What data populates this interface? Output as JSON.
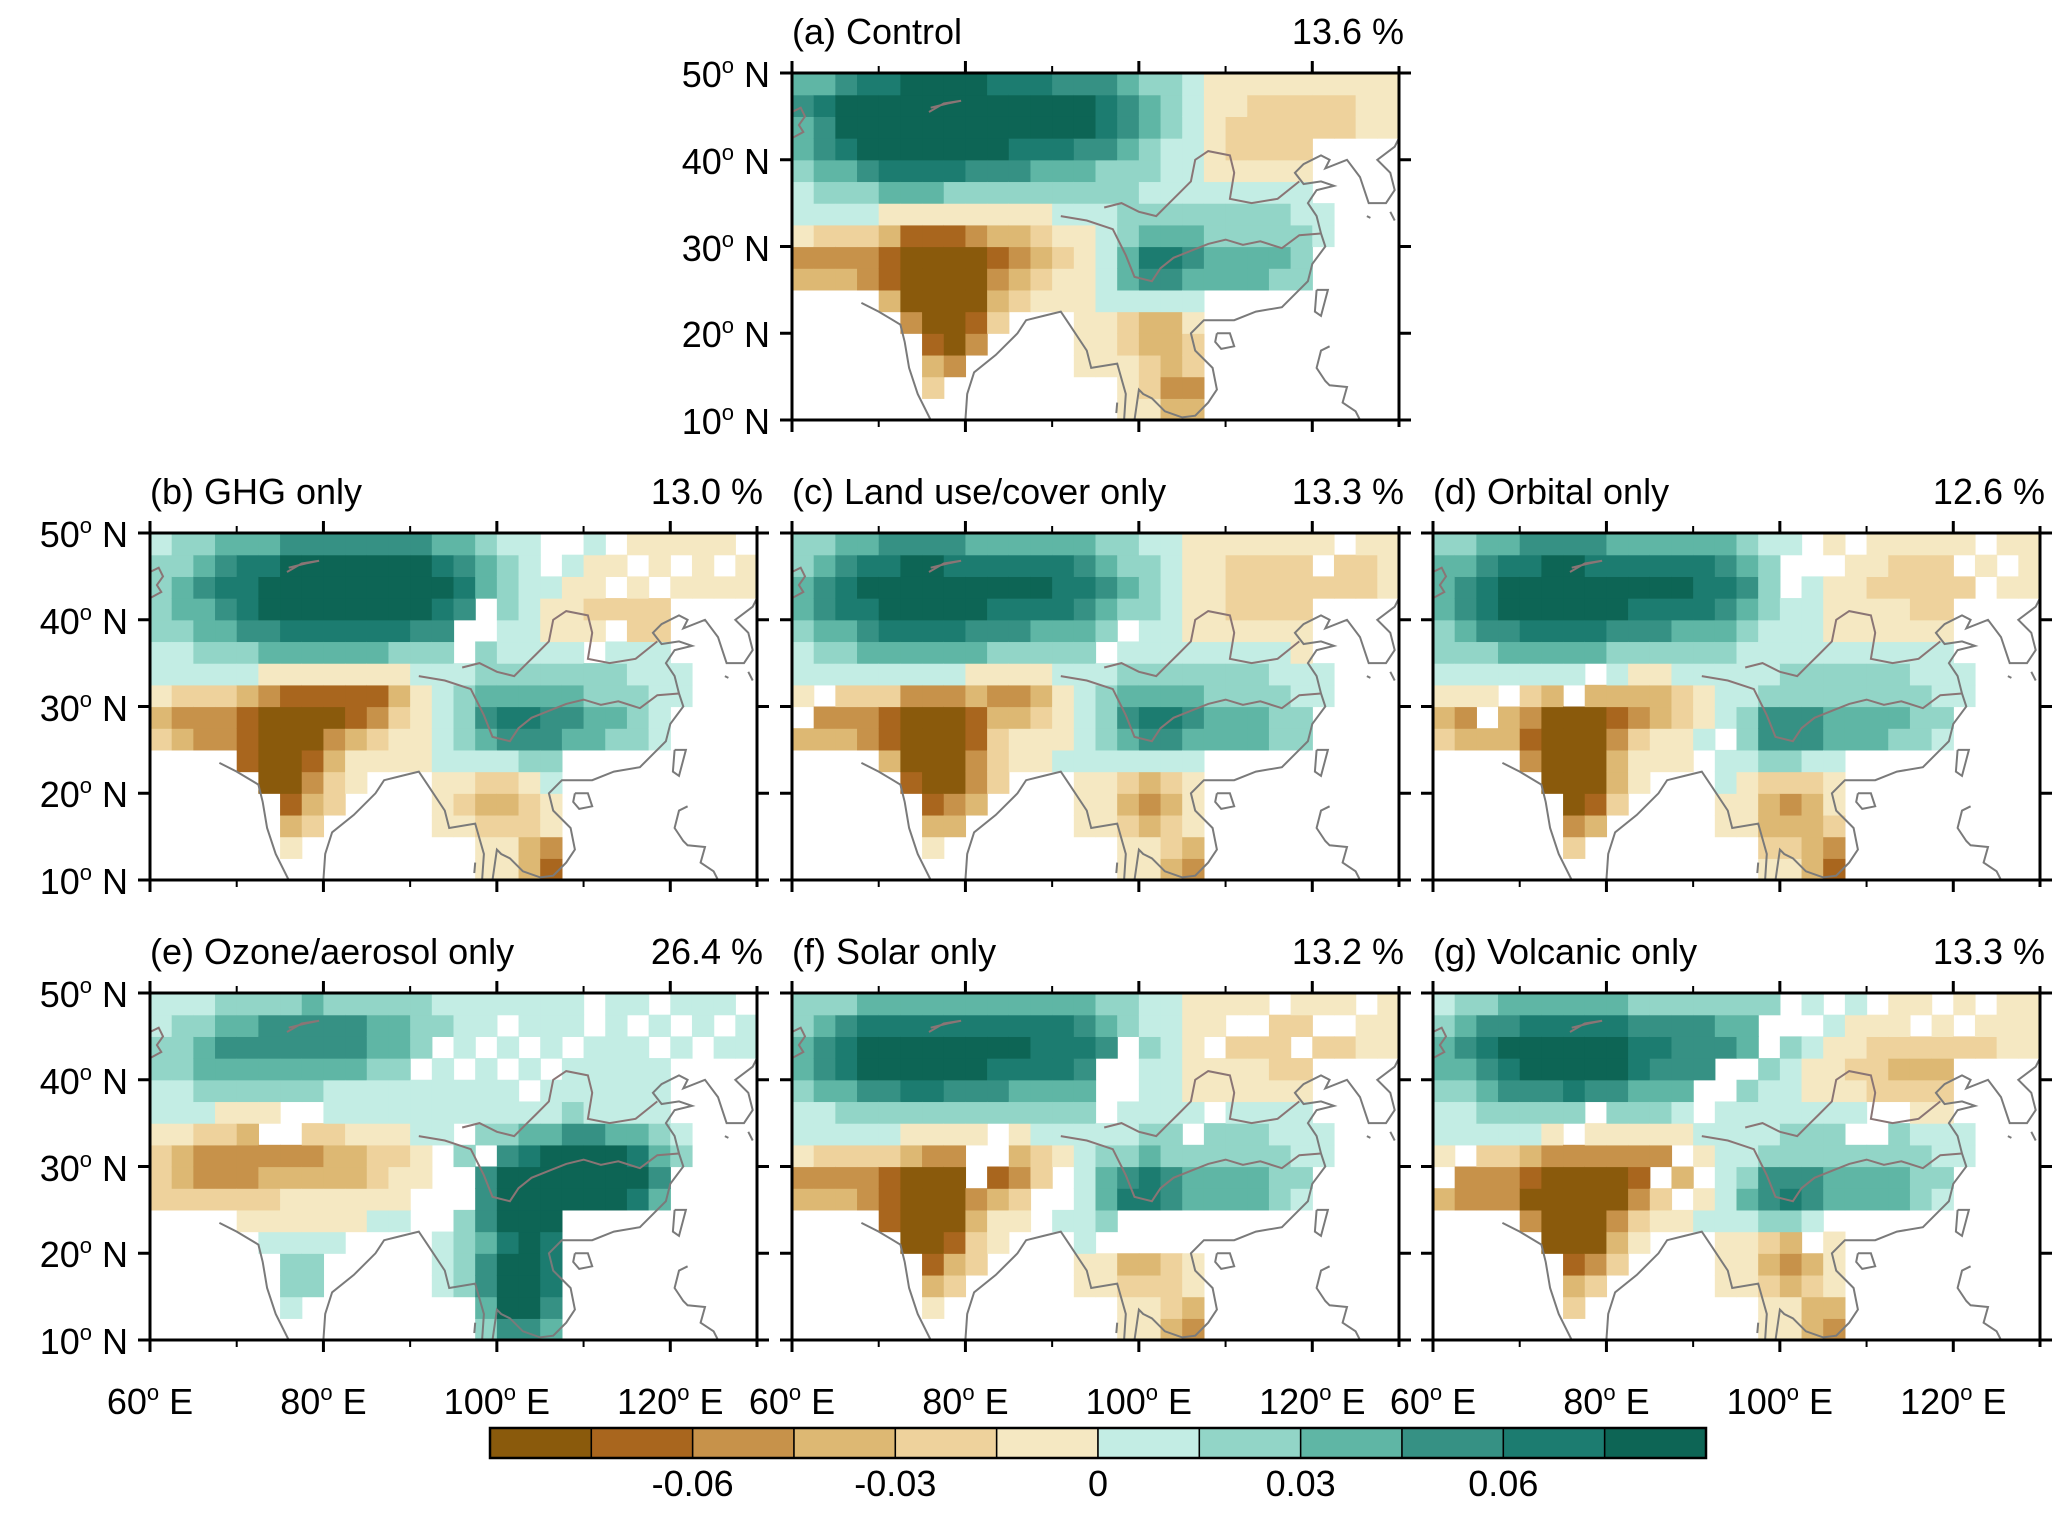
{
  "chart_data": {
    "type": "heatmap",
    "figure_kind": "multi-panel filled-contour map",
    "xlabel": "",
    "ylabel": "",
    "lon_range": [
      60,
      130
    ],
    "lat_range": [
      10,
      50
    ],
    "lon_ticks_major": [
      60,
      80,
      100,
      120
    ],
    "lon_ticks_minor": [
      70,
      90,
      110,
      130
    ],
    "lat_ticks": [
      10,
      20,
      30,
      40,
      50
    ],
    "lon_tick_labels": [
      "60° E",
      "80° E",
      "100° E",
      "120° E"
    ],
    "lat_tick_labels": [
      "10° N",
      "20° N",
      "30° N",
      "40° N",
      "50° N"
    ],
    "grid_resolution_deg": 2.5,
    "colorbar": {
      "placement": "bottom",
      "boundaries": [
        -0.075,
        -0.06,
        -0.045,
        -0.03,
        -0.015,
        0,
        0.015,
        0.03,
        0.045,
        0.06,
        0.075
      ],
      "colors": [
        "#8a5a0c",
        "#a9661e",
        "#c7924a",
        "#ddb873",
        "#eed29c",
        "#f5e8c2",
        "#c3ede4",
        "#92d5c7",
        "#5fb6a5",
        "#369184",
        "#1c7c70",
        "#0d6555"
      ],
      "tick_labels": [
        "-0.06",
        "-0.03",
        "0",
        "0.03",
        "0.06"
      ],
      "tick_values": [
        -0.06,
        -0.03,
        0,
        0.03,
        0.06
      ]
    },
    "panels": [
      {
        "id": "a",
        "title": "(a) Control",
        "percent": "13.6 %",
        "blobs": [
          [
            75,
            43,
            14,
            7,
            0.095
          ],
          [
            95,
            44,
            10,
            6,
            0.05
          ],
          [
            80,
            47,
            20,
            4,
            0.04
          ],
          [
            76,
            28,
            6,
            5,
            -0.11
          ],
          [
            78,
            21,
            5,
            6,
            -0.09
          ],
          [
            86,
            29,
            6,
            4,
            -0.05
          ],
          [
            102,
            28,
            5,
            4,
            0.06
          ],
          [
            112,
            28,
            9,
            4,
            0.04
          ],
          [
            110,
            34,
            14,
            3,
            0.015
          ],
          [
            116,
            44,
            12,
            5,
            -0.03
          ],
          [
            102,
            20,
            4,
            4,
            -0.05
          ],
          [
            105,
            13,
            3,
            3,
            -0.06
          ],
          [
            64,
            28,
            6,
            3,
            -0.06
          ]
        ],
        "missing": []
      },
      {
        "id": "b",
        "title": "(b) GHG only",
        "percent": "13.0 %",
        "blobs": [
          [
            78,
            43,
            14,
            7,
            0.095
          ],
          [
            92,
            44,
            8,
            6,
            0.06
          ],
          [
            78,
            29,
            7,
            4,
            -0.09
          ],
          [
            75,
            22,
            5,
            6,
            -0.1
          ],
          [
            86,
            31,
            4,
            3,
            -0.05
          ],
          [
            101,
            28,
            5,
            4,
            0.06
          ],
          [
            110,
            28,
            8,
            4,
            0.045
          ],
          [
            108,
            34,
            12,
            3,
            0.015
          ],
          [
            118,
            41,
            10,
            3,
            -0.03
          ],
          [
            100,
            19,
            4,
            4,
            -0.05
          ],
          [
            106,
            12,
            3,
            3,
            -0.07
          ],
          [
            65,
            28,
            6,
            3,
            -0.06
          ]
        ],
        "missing": [
          [
            107.5,
            47.5
          ],
          [
            115,
            45
          ],
          [
            120,
            45
          ],
          [
            127.5,
            47.5
          ],
          [
            97.5,
            40
          ],
          [
            97.5,
            37.5
          ],
          [
            112.5,
            37.5
          ],
          [
            107.5,
            50
          ],
          [
            115,
            50
          ]
        ]
      },
      {
        "id": "c",
        "title": "(c) Land use/cover only",
        "percent": "13.3 %",
        "blobs": [
          [
            75,
            43,
            14,
            7,
            0.095
          ],
          [
            93,
            44,
            9,
            6,
            0.05
          ],
          [
            76,
            28,
            6,
            4,
            -0.1
          ],
          [
            77,
            22,
            5,
            6,
            -0.09
          ],
          [
            86,
            31,
            5,
            3,
            -0.05
          ],
          [
            101,
            28,
            5,
            4,
            0.06
          ],
          [
            111,
            28,
            9,
            4,
            0.04
          ],
          [
            108,
            34,
            12,
            3,
            0.015
          ],
          [
            118,
            44,
            14,
            6,
            -0.025
          ],
          [
            101,
            19,
            4,
            4,
            -0.05
          ],
          [
            106,
            12,
            3,
            3,
            -0.06
          ],
          [
            64,
            28,
            6,
            3,
            -0.06
          ]
        ],
        "missing": [
          [
            62.5,
            30
          ],
          [
            122.5,
            47.5
          ],
          [
            97.5,
            37.5
          ]
        ]
      },
      {
        "id": "d",
        "title": "(d) Orbital only",
        "percent": "12.6 %",
        "blobs": [
          [
            74,
            43,
            14,
            7,
            0.095
          ],
          [
            92,
            44,
            8,
            6,
            0.055
          ],
          [
            76,
            28,
            6,
            4,
            -0.08
          ],
          [
            76,
            21,
            5,
            6,
            -0.1
          ],
          [
            85,
            30,
            5,
            3,
            -0.05
          ],
          [
            100,
            27,
            5,
            4,
            0.05
          ],
          [
            110,
            28,
            9,
            4,
            0.04
          ],
          [
            108,
            34,
            12,
            3,
            0.015
          ],
          [
            118,
            44,
            14,
            6,
            -0.02
          ],
          [
            101,
            18,
            4,
            5,
            -0.05
          ],
          [
            106,
            12,
            3,
            3,
            -0.07
          ],
          [
            64,
            28,
            6,
            3,
            -0.05
          ]
        ],
        "missing": [
          [
            67.5,
            30
          ],
          [
            77.5,
            32.5
          ],
          [
            102.5,
            45
          ],
          [
            102.5,
            47.5
          ],
          [
            107.5,
            47.5
          ],
          [
            122.5,
            47.5
          ],
          [
            125,
            45
          ],
          [
            92.5,
            25
          ]
        ]
      },
      {
        "id": "e",
        "title": "(e) Ozone/aerosol only",
        "percent": "26.4 %",
        "blobs": [
          [
            80,
            45,
            14,
            5,
            0.05
          ],
          [
            70,
            42,
            10,
            5,
            0.025
          ],
          [
            72,
            31,
            9,
            4,
            -0.055
          ],
          [
            84,
            30,
            7,
            3,
            -0.03
          ],
          [
            65,
            28,
            6,
            3,
            -0.03
          ],
          [
            107,
            27,
            10,
            6,
            0.11
          ],
          [
            103,
            16,
            5,
            6,
            0.1
          ],
          [
            112,
            30,
            7,
            4,
            0.06
          ],
          [
            118,
            44,
            14,
            5,
            0.015
          ],
          [
            78,
            17,
            3,
            3,
            0.03
          ]
        ],
        "missing": [
          [
            77.5,
            35
          ],
          [
            75,
            35
          ],
          [
            95,
            32.5
          ],
          [
            97.5,
            30
          ],
          [
            92.5,
            27.5
          ],
          [
            92.5,
            25
          ],
          [
            95,
            25
          ],
          [
            90,
            22.5
          ],
          [
            92.5,
            22.5
          ],
          [
            90,
            20
          ],
          [
            97.5,
            42.5
          ],
          [
            102.5,
            42.5
          ],
          [
            105,
            40
          ],
          [
            100,
            45
          ],
          [
            110,
            45
          ],
          [
            120,
            45
          ],
          [
            122.5,
            42.5
          ],
          [
            117.5,
            47.5
          ],
          [
            112.5,
            50
          ],
          [
            127.5,
            47.5
          ],
          [
            82.5,
            20
          ],
          [
            92.5,
            42.5
          ]
        ]
      },
      {
        "id": "f",
        "title": "(f) Solar only",
        "percent": "13.2 %",
        "blobs": [
          [
            75,
            43,
            14,
            6,
            0.1
          ],
          [
            93,
            44,
            8,
            6,
            0.05
          ],
          [
            77,
            28,
            6,
            4,
            -0.085
          ],
          [
            75,
            22,
            5,
            6,
            -0.1
          ],
          [
            85,
            30,
            4,
            3,
            -0.05
          ],
          [
            100,
            27,
            5,
            4,
            0.07
          ],
          [
            111,
            28,
            8,
            4,
            0.045
          ],
          [
            108,
            34,
            12,
            3,
            0.015
          ],
          [
            118,
            44,
            14,
            6,
            -0.02
          ],
          [
            101,
            19,
            4,
            4,
            -0.045
          ],
          [
            106,
            12,
            3,
            3,
            -0.06
          ],
          [
            64,
            28,
            6,
            3,
            -0.06
          ]
        ],
        "missing": [
          [
            82.5,
            32.5
          ],
          [
            82.5,
            30
          ],
          [
            90,
            27.5
          ],
          [
            90,
            25
          ],
          [
            97.5,
            22.5
          ],
          [
            100,
            22.5
          ],
          [
            102.5,
            22.5
          ],
          [
            105,
            22.5
          ],
          [
            107.5,
            22.5
          ],
          [
            110,
            45
          ],
          [
            115,
            47.5
          ],
          [
            120,
            45
          ],
          [
            125,
            47.5
          ],
          [
            97.5,
            42.5
          ],
          [
            97.5,
            40
          ],
          [
            97.5,
            37.5
          ],
          [
            107.5,
            35
          ]
        ]
      },
      {
        "id": "g",
        "title": "(g) Volcanic only",
        "percent": "13.3 %",
        "blobs": [
          [
            75,
            43,
            13,
            6,
            0.1
          ],
          [
            94,
            44,
            8,
            6,
            0.04
          ],
          [
            77,
            28,
            7,
            4,
            -0.1
          ],
          [
            76,
            22,
            5,
            6,
            -0.1
          ],
          [
            86,
            30,
            4,
            3,
            -0.05
          ],
          [
            100,
            27,
            5,
            4,
            0.06
          ],
          [
            111,
            28,
            8,
            4,
            0.045
          ],
          [
            108,
            34,
            12,
            3,
            0.015
          ],
          [
            117,
            41,
            12,
            4,
            -0.035
          ],
          [
            101,
            19,
            4,
            4,
            -0.06
          ],
          [
            106,
            12,
            3,
            3,
            -0.06
          ],
          [
            64,
            28,
            6,
            3,
            -0.06
          ]
        ],
        "missing": [
          [
            62.5,
            30
          ],
          [
            77.5,
            35
          ],
          [
            87.5,
            30
          ],
          [
            90,
            27.5
          ],
          [
            92.5,
            37.5
          ],
          [
            92.5,
            40
          ],
          [
            95,
            40
          ],
          [
            100,
            45
          ],
          [
            100,
            47.5
          ],
          [
            105,
            47.5
          ],
          [
            107.5,
            50
          ],
          [
            112.5,
            50
          ],
          [
            117.5,
            47.5
          ],
          [
            122.5,
            47.5
          ],
          [
            110,
            35
          ],
          [
            112.5,
            35
          ],
          [
            105,
            22.5
          ],
          [
            112.5,
            22.5
          ]
        ]
      }
    ],
    "land_mask_note": "values shown only over land within domain; ocean is blank"
  }
}
